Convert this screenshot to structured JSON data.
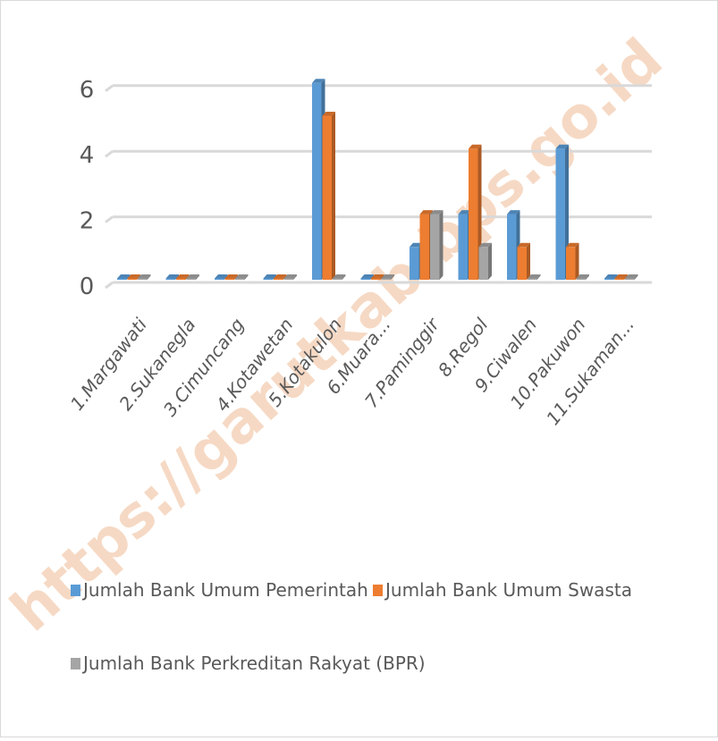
{
  "watermark": "https://garutkab.bps.go.id",
  "colors": {
    "pemerintah": "#5b9bd5",
    "swasta": "#ed7d31",
    "bpr": "#a5a5a5",
    "grid": "#d9d9d9",
    "text": "#595959"
  },
  "chart_data": {
    "type": "bar",
    "style": "3d-clustered-column",
    "categories": [
      "1.Margawati",
      "2.Sukanegla",
      "3.Cimuncang",
      "4.Kotawetan",
      "5.Kotakulon",
      "6.Muara...",
      "7.Paminggir",
      "8.Regol",
      "9.Ciwalen",
      "10.Pakuwon",
      "11.Sukaman..."
    ],
    "series": [
      {
        "name": "Jumlah Bank Umum Pemerintah",
        "color": "#5b9bd5",
        "values": [
          0,
          0,
          0,
          0,
          6,
          0,
          1,
          2,
          2,
          4,
          0
        ]
      },
      {
        "name": "Jumlah Bank Umum Swasta",
        "color": "#ed7d31",
        "values": [
          0,
          0,
          0,
          0,
          5,
          0,
          2,
          4,
          1,
          1,
          0
        ]
      },
      {
        "name": "Jumlah Bank Perkreditan Rakyat (BPR)",
        "color": "#a5a5a5",
        "values": [
          0,
          0,
          0,
          0,
          0,
          0,
          2,
          1,
          0,
          0,
          0
        ]
      }
    ],
    "yticks": [
      "0",
      "2",
      "4",
      "6"
    ],
    "ylim": [
      0,
      6
    ],
    "grid": true,
    "legend_position": "bottom"
  }
}
